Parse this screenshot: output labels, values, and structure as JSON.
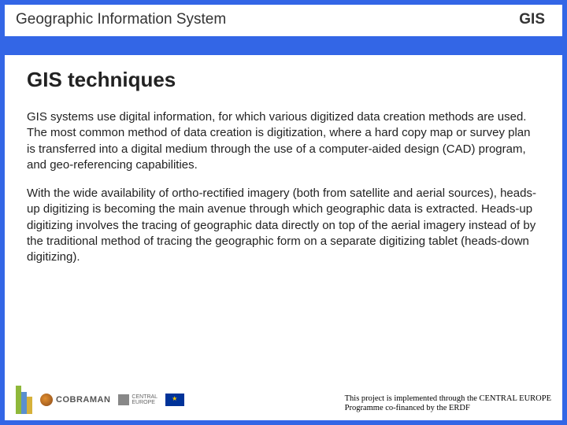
{
  "header": {
    "left": "Geographic Information System",
    "right": "GIS"
  },
  "content": {
    "title": "GIS techniques",
    "para1": "GIS systems use digital information, for which various digitized data creation methods are used. The most common method of data creation is digitization, where a hard copy map or survey plan is transferred into a digital medium through the use of a computer-aided design (CAD) program, and geo-referencing capabilities.",
    "para2": "With the wide availability of ortho-rectified imagery (both from satellite and aerial sources), heads-up digitizing is becoming the main avenue through which geographic data is extracted. Heads-up digitizing involves the tracing of geographic data directly on top of the aerial imagery instead of by the traditional method of tracing the geographic form on a separate digitizing tablet (heads-down digitizing)."
  },
  "footer": {
    "logos": {
      "cobraman": "COBRAMAN",
      "central1": "CENTRAL",
      "central2": "EUROPE"
    },
    "credit_line1": "This project is implemented through the CENTRAL EUROPE",
    "credit_line2": "Programme co-financed by the ERDF"
  },
  "colors": {
    "accent": "#3366e6",
    "text": "#222222",
    "background": "#ffffff"
  }
}
